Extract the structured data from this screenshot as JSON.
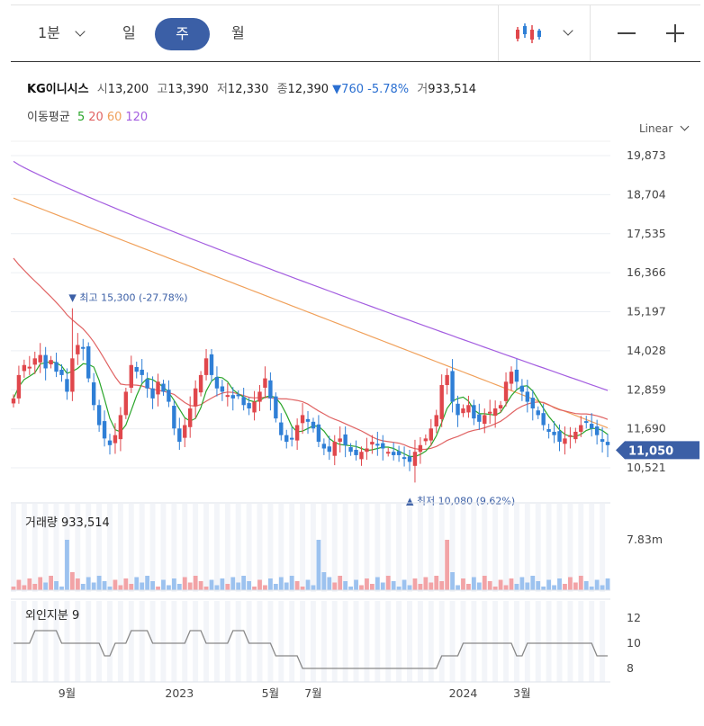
{
  "toolbar": {
    "interval_1min": "1분",
    "day": "일",
    "week": "주",
    "month": "월",
    "chart_type_icon": "candlestick-icon",
    "zoom_out_icon": "minus-icon",
    "zoom_in_icon": "plus-icon"
  },
  "info": {
    "name": "KG이니시스",
    "open_label": "시",
    "open": "13,200",
    "high_label": "고",
    "high": "13,390",
    "low_label": "저",
    "low": "12,330",
    "close_label": "종",
    "close": "12,390",
    "change": "760",
    "change_pct": "-5.78%",
    "volume_label": "거",
    "volume": "933,514"
  },
  "moving_average": {
    "label": "이동평균",
    "periods": [
      {
        "text": "5",
        "color": "#2aa52a"
      },
      {
        "text": "20",
        "color": "#e06363"
      },
      {
        "text": "60",
        "color": "#f0a05a"
      },
      {
        "text": "120",
        "color": "#a45ee0"
      }
    ]
  },
  "scale_mode": "Linear",
  "volume_panel": {
    "label": "거래량",
    "value": "933,514",
    "axis_label": "7.83m"
  },
  "foreign_panel": {
    "label": "외인지분",
    "value": "9",
    "ticks": [
      "12",
      "10",
      "8"
    ]
  },
  "current_price_tag": "11,050",
  "annotations": {
    "high": "최고 15,300 (-27.78%)",
    "low": "최저 10,080 (9.62%)"
  },
  "colors": {
    "up": "#e0474c",
    "down": "#2f7fd6",
    "tag": "#3b5fa6"
  },
  "chart_data": {
    "type": "candlestick",
    "y_ticks": [
      "19,873",
      "18,704",
      "17,535",
      "16,366",
      "15,197",
      "14,028",
      "12,859",
      "11,690",
      "10,521"
    ],
    "y_tick_values": [
      19873,
      18704,
      17535,
      16366,
      15197,
      14028,
      12859,
      11690,
      10521
    ],
    "ylim": [
      10200,
      20100
    ],
    "x_tick_labels": [
      "9월",
      "2023",
      "5월",
      "7월",
      "2024",
      "3월"
    ],
    "x_tick_index": [
      10,
      31,
      48,
      56,
      84,
      95
    ],
    "n_periods": 112,
    "close": [
      12600,
      13300,
      13600,
      13550,
      13800,
      13900,
      13500,
      13750,
      13400,
      13300,
      12800,
      13800,
      14200,
      14100,
      13200,
      12400,
      11800,
      11400,
      11200,
      11500,
      12100,
      12800,
      13600,
      13400,
      13300,
      12900,
      12600,
      13100,
      12800,
      12500,
      11700,
      11300,
      11800,
      12300,
      12900,
      13300,
      13800,
      13300,
      12900,
      12800,
      12700,
      12600,
      12700,
      12400,
      12300,
      12500,
      12800,
      13200,
      12600,
      12000,
      11500,
      11300,
      11400,
      11800,
      12100,
      11900,
      11700,
      11300,
      11100,
      11000,
      11300,
      11400,
      11200,
      11000,
      10900,
      11000,
      11100,
      11300,
      11200,
      11100,
      11000,
      10900,
      10900,
      10800,
      10700,
      11000,
      11200,
      11400,
      11700,
      12100,
      13000,
      13300,
      12500,
      12100,
      12300,
      12400,
      12000,
      11900,
      12100,
      12200,
      12300,
      12400,
      13100,
      13400,
      13100,
      12800,
      12500,
      12300,
      12100,
      11800,
      11600,
      11500,
      11300,
      11400,
      11500,
      11600,
      11800,
      11900,
      11700,
      11500,
      11300,
      11200
    ],
    "high_point": {
      "index": 11,
      "value": 15300
    },
    "low_point": {
      "index": 75,
      "value": 10080
    },
    "ma120_start": 19700,
    "ma120_end": 12840,
    "volume_spikes": [
      10,
      57,
      81
    ],
    "foreign_ratio": [
      10,
      10,
      10,
      10,
      11,
      11,
      11,
      11,
      11,
      10,
      10,
      10,
      10,
      10,
      10,
      10,
      10,
      9,
      9,
      10,
      10,
      10,
      11,
      11,
      11,
      11,
      10,
      10,
      10,
      10,
      10,
      10,
      10,
      11,
      11,
      11,
      10,
      10,
      10,
      10,
      10,
      11,
      11,
      11,
      10,
      10,
      10,
      10,
      10,
      9,
      9,
      9,
      9,
      9,
      8,
      8,
      8,
      8,
      8,
      8,
      8,
      8,
      8,
      8,
      8,
      8,
      8,
      8,
      8,
      8,
      8,
      8,
      8,
      8,
      8,
      8,
      8,
      8,
      8,
      8,
      9,
      9,
      9,
      9,
      10,
      10,
      10,
      10,
      10,
      10,
      10,
      10,
      10,
      10,
      9,
      9,
      10,
      10,
      10,
      10,
      10,
      10,
      10,
      10,
      10,
      10,
      10,
      10,
      10,
      9,
      9,
      9
    ]
  }
}
